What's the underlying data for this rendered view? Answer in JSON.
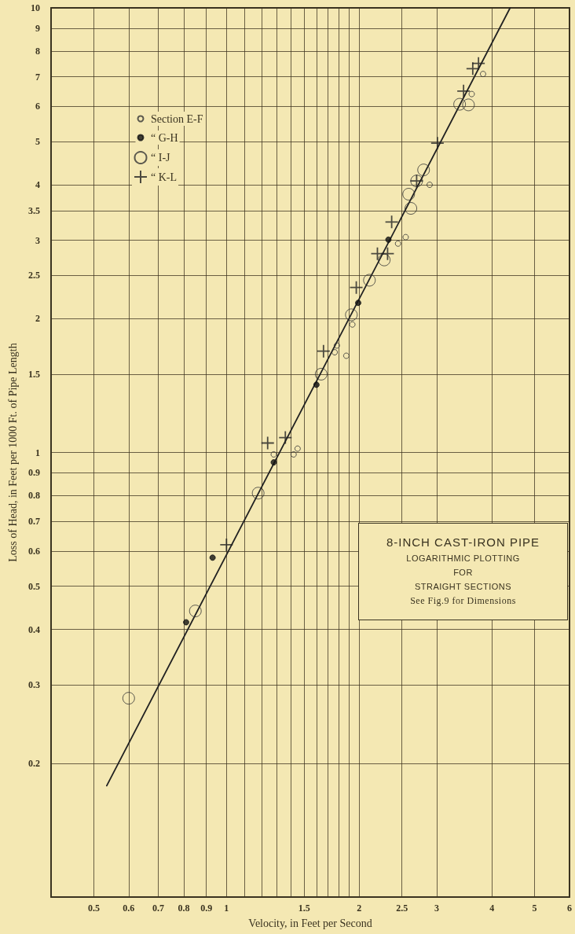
{
  "chart_data": {
    "type": "scatter",
    "xlabel": "Velocity, in Feet per Second",
    "ylabel": "Loss of Head, in Feet per 1000 Ft. of Pipe Length",
    "log": "xy",
    "grid": true,
    "legend": "top left",
    "xlim": [
      0.4,
      6
    ],
    "ylim": [
      0.1,
      10
    ],
    "xticks": [
      0.5,
      0.6,
      0.7,
      0.8,
      0.9,
      1,
      {
        "value": 1.1,
        "label": null
      },
      {
        "value": 1.2,
        "label": null
      },
      {
        "value": 1.3,
        "label": null
      },
      {
        "value": 1.4,
        "label": null
      },
      1.5,
      {
        "value": 1.6,
        "label": null
      },
      {
        "value": 1.7,
        "label": null
      },
      {
        "value": 1.8,
        "label": null
      },
      {
        "value": 1.9,
        "label": null
      },
      2,
      2.5,
      3,
      4,
      5,
      6
    ],
    "yticks": [
      0.2,
      0.3,
      0.4,
      0.5,
      0.6,
      0.7,
      0.8,
      0.9,
      1,
      1.5,
      2,
      2.5,
      3,
      3.5,
      4,
      5,
      6,
      7,
      8,
      9,
      10
    ],
    "annotations": [
      "8-INCH CAST-IRON PIPE",
      "LOGARITHMIC PLOTTING",
      "FOR",
      "STRAIGHT SECTIONS",
      "See Fig.9 for Dimensions"
    ],
    "series": [
      {
        "name": "Section E-F",
        "marker": "circle",
        "color": "#333333",
        "x": [
          1.28,
          1.42,
          1.45,
          1.78,
          1.76,
          1.87,
          1.93,
          2.45,
          2.55,
          2.89,
          3.6,
          3.82
        ],
        "values": [
          0.99,
          0.99,
          1.02,
          1.74,
          1.68,
          1.65,
          1.94,
          2.95,
          3.05,
          4.0,
          6.4,
          7.1
        ]
      },
      {
        "name": "“ G-H",
        "marker": "circle",
        "color": "#111111",
        "x": [
          0.81,
          0.93,
          1.28,
          1.6,
          1.99,
          2.33
        ],
        "values": [
          0.415,
          0.58,
          0.95,
          1.42,
          2.17,
          3.01
        ]
      },
      {
        "name": "“ I-J",
        "marker": "circle",
        "color": "#333333",
        "x": [
          0.6,
          0.85,
          1.18,
          1.64,
          1.92,
          2.11,
          2.28,
          2.59,
          2.62,
          2.7,
          2.8,
          3.38,
          3.54
        ],
        "values": [
          0.28,
          0.44,
          0.81,
          1.5,
          2.04,
          2.44,
          2.71,
          3.81,
          3.54,
          4.08,
          4.32,
          6.07,
          6.05
        ]
      },
      {
        "name": "“ K-L",
        "marker": "cross",
        "color": "#222222",
        "x": [
          1.0,
          1.24,
          1.36,
          1.66,
          1.97,
          2.2,
          2.32,
          2.37,
          2.7,
          3.01,
          3.45,
          3.62,
          3.73
        ],
        "values": [
          0.62,
          1.05,
          1.08,
          1.69,
          2.35,
          2.8,
          2.8,
          3.3,
          4.08,
          4.96,
          6.5,
          7.3,
          7.5
        ]
      },
      {
        "type": "line",
        "marker": "none",
        "line_style": "solid",
        "color": "#222222",
        "x": [
          0.535,
          4.4
        ],
        "values": [
          0.178,
          10
        ]
      }
    ]
  }
}
